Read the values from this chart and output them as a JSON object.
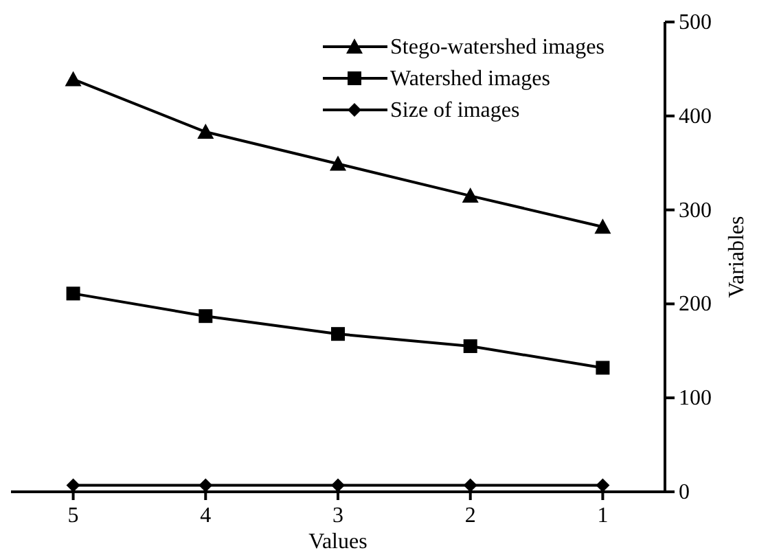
{
  "chart_data": {
    "type": "line",
    "xlabel": "Values",
    "ylabel": "Variables",
    "categories": [
      "5",
      "4",
      "3",
      "2",
      "1"
    ],
    "ylim": [
      0,
      500
    ],
    "yticks": [
      0,
      100,
      200,
      300,
      400,
      500
    ],
    "grid": false,
    "legend": "top right",
    "line_style": "solid",
    "series": [
      {
        "name": "Stego-watershed images",
        "color": "#000000",
        "marker": "triangle",
        "values": [
          439,
          383,
          349,
          315,
          282
        ]
      },
      {
        "name": "Watershed images",
        "color": "#000000",
        "marker": "square",
        "values": [
          211,
          187,
          168,
          155,
          132
        ]
      },
      {
        "name": "Size of images",
        "color": "#000000",
        "marker": "diamond",
        "values": [
          7,
          7,
          7,
          7,
          7
        ]
      }
    ]
  }
}
